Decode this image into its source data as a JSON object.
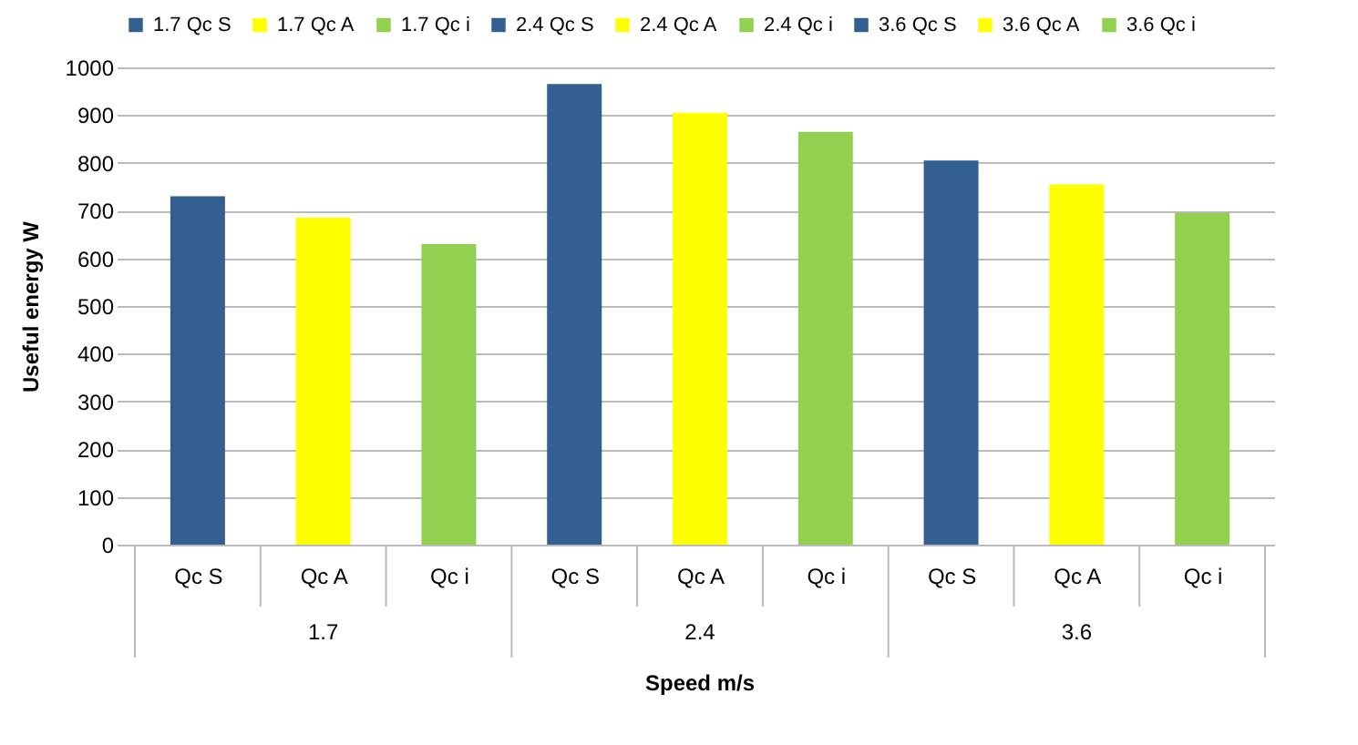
{
  "chart_data": {
    "type": "bar",
    "xlabel": "Speed m/s",
    "ylabel": "Useful energy W",
    "categories": [
      "Qc S",
      "Qc A",
      "Qc i",
      "Qc S",
      "Qc A",
      "Qc i",
      "Qc S",
      "Qc A",
      "Qc i"
    ],
    "series": [
      {
        "name": "1.7 Qc S",
        "color": "#335f91",
        "values": [
          730,
          null,
          null,
          null,
          null,
          null,
          null,
          null,
          null
        ]
      },
      {
        "name": "1.7 Qc A",
        "color": "#ffff00",
        "values": [
          null,
          685,
          null,
          null,
          null,
          null,
          null,
          null,
          null
        ]
      },
      {
        "name": "1.7 Qc i",
        "color": "#92d050",
        "values": [
          null,
          null,
          630,
          null,
          null,
          null,
          null,
          null,
          null
        ]
      },
      {
        "name": "2.4 Qc S",
        "color": "#335f91",
        "values": [
          null,
          null,
          null,
          965,
          null,
          null,
          null,
          null,
          null
        ]
      },
      {
        "name": "2.4 Qc A",
        "color": "#ffff00",
        "values": [
          null,
          null,
          null,
          null,
          905,
          null,
          null,
          null,
          null
        ]
      },
      {
        "name": "2.4 Qc i",
        "color": "#92d050",
        "values": [
          null,
          null,
          null,
          null,
          null,
          865,
          null,
          null,
          null
        ]
      },
      {
        "name": "3.6 Qc S",
        "color": "#335f91",
        "values": [
          null,
          null,
          null,
          null,
          null,
          null,
          805,
          null,
          null
        ]
      },
      {
        "name": "3.6 Qc A",
        "color": "#ffff00",
        "values": [
          null,
          null,
          null,
          null,
          null,
          null,
          null,
          755,
          null
        ]
      },
      {
        "name": "3.6 Qc i",
        "color": "#92d050",
        "values": [
          null,
          null,
          null,
          null,
          null,
          null,
          null,
          null,
          695
        ]
      }
    ],
    "annotations": [
      "1.7",
      "2.4",
      "3.6"
    ],
    "ylim": [
      0,
      1000
    ],
    "yticks": [
      0,
      100,
      200,
      300,
      400,
      500,
      600,
      700,
      800,
      900,
      1000
    ],
    "grid": "y",
    "legend": "top"
  }
}
